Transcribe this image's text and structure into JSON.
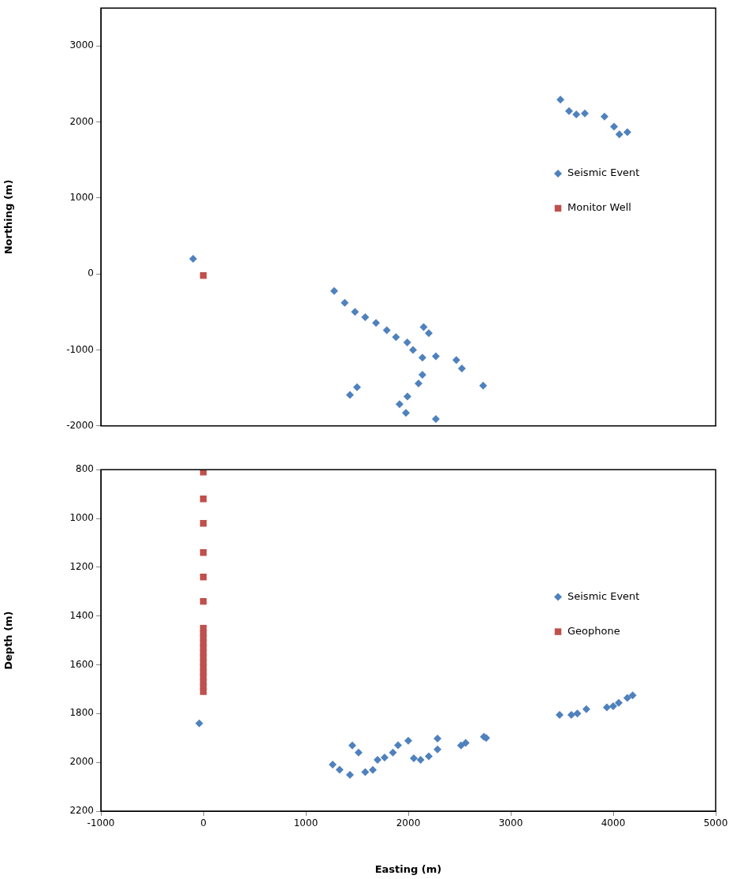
{
  "chart_data": [
    {
      "type": "scatter",
      "ylabel": "Northing (m)",
      "xlim": [
        -1000,
        5000
      ],
      "xticks": [
        -1000,
        0,
        1000,
        2000,
        3000,
        4000,
        5000
      ],
      "ylim": [
        -2000,
        3500
      ],
      "yticks": [
        -2000,
        -1000,
        0,
        1000,
        2000,
        3000
      ],
      "tick_labels": "y",
      "grid": false,
      "legend": "right",
      "series": [
        {
          "name": "Seismic Event",
          "color": "#4f81bd",
          "marker": "diamond",
          "x": [
            -100,
            1277,
            1380,
            1480,
            1580,
            1685,
            1790,
            1880,
            1990,
            2046,
            2138,
            2269,
            2150,
            2200,
            2469,
            2523,
            2731,
            1500,
            1431,
            2138,
            2100,
            1992,
            1915,
            1977,
            2269,
            3485,
            3569,
            3640,
            3723,
            3915,
            4008,
            4138,
            4060
          ],
          "values": [
            200,
            -224,
            -380,
            -500,
            -570,
            -643,
            -740,
            -830,
            -900,
            -1000,
            -1102,
            -1082,
            -700,
            -780,
            -1133,
            -1245,
            -1469,
            -1490,
            -1592,
            -1327,
            -1440,
            -1612,
            -1714,
            -1827,
            -1908,
            2296,
            2143,
            2100,
            2112,
            2071,
            1939,
            1867,
            1837
          ]
        },
        {
          "name": "Monitor Well",
          "color": "#c0504d",
          "marker": "square",
          "x": [
            0
          ],
          "values": [
            -20
          ]
        }
      ]
    },
    {
      "type": "scatter",
      "xlabel": "Easting (m)",
      "ylabel": "Depth (m)",
      "xlim": [
        -1000,
        5000
      ],
      "xticks": [
        -1000,
        0,
        1000,
        2000,
        3000,
        4000,
        5000
      ],
      "ylim": [
        2200,
        800
      ],
      "yticks": [
        800,
        1000,
        1200,
        1400,
        1600,
        1800,
        2000,
        2200
      ],
      "grid": false,
      "legend": "right",
      "series": [
        {
          "name": "Seismic Event",
          "color": "#4f81bd",
          "marker": "diamond",
          "x": [
            -40,
            1262,
            1330,
            1431,
            1454,
            1515,
            1580,
            1654,
            1700,
            1769,
            1850,
            1900,
            2000,
            2054,
            2120,
            2200,
            2285,
            2285,
            2515,
            2560,
            2738,
            2760,
            3477,
            3592,
            3650,
            3738,
            3938,
            4000,
            4054,
            4138,
            4190
          ],
          "values": [
            1840,
            2009,
            2030,
            2051,
            1931,
            1960,
            2040,
            2031,
            1990,
            1980,
            1960,
            1930,
            1911,
            1983,
            1990,
            1975,
            1902,
            1947,
            1931,
            1920,
            1895,
            1900,
            1805,
            1805,
            1800,
            1782,
            1775,
            1770,
            1756,
            1736,
            1725
          ]
        },
        {
          "name": "Geophone",
          "color": "#c0504d",
          "marker": "square",
          "x": [
            0,
            0,
            0,
            0,
            0,
            0,
            0,
            0,
            0,
            0,
            0,
            0,
            0,
            0,
            0,
            0,
            0,
            0,
            0,
            0
          ],
          "values": [
            810,
            920,
            1020,
            1140,
            1240,
            1340,
            1450,
            1470,
            1490,
            1510,
            1530,
            1550,
            1570,
            1590,
            1610,
            1630,
            1650,
            1670,
            1690,
            1710
          ]
        }
      ]
    }
  ]
}
